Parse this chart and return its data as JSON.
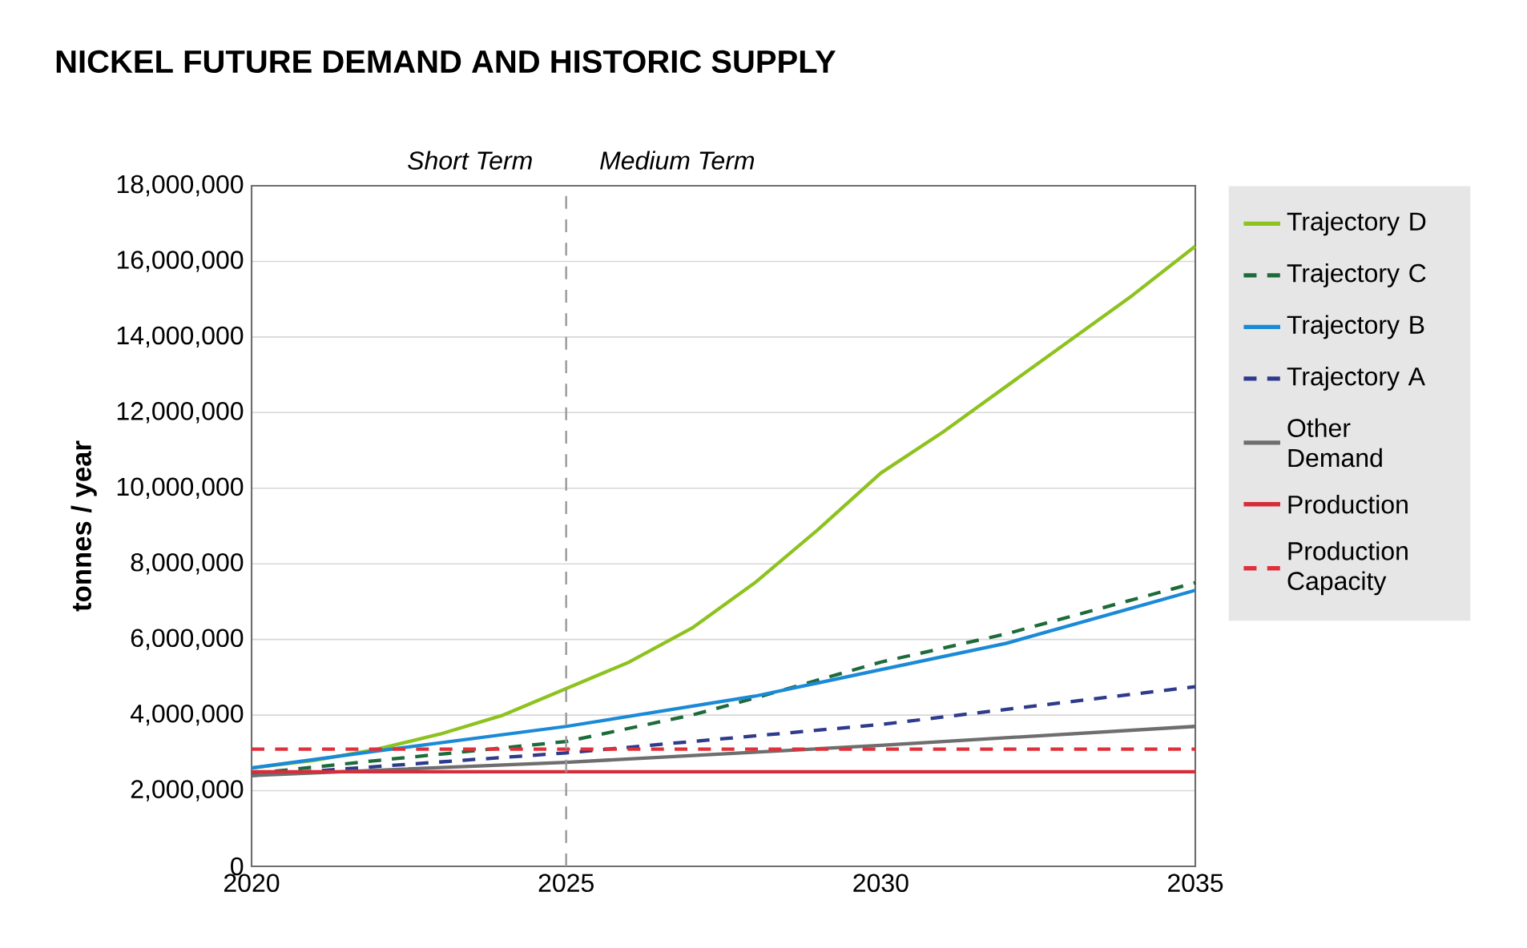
{
  "chart_data": {
    "type": "line",
    "title": "NICKEL FUTURE DEMAND AND HISTORIC SUPPLY",
    "ylabel": "tonnes / year",
    "annotations": [
      "Short Term",
      "Medium Term"
    ],
    "xlim": [
      2020,
      2035
    ],
    "xticks": [
      2020,
      2025,
      2030,
      2035
    ],
    "ylim": [
      0,
      18000000
    ],
    "yticks": [
      {
        "value": 0,
        "label": "0"
      },
      {
        "value": 2000000,
        "label": "2,000,000"
      },
      {
        "value": 4000000,
        "label": "4,000,000"
      },
      {
        "value": 6000000,
        "label": "6,000,000"
      },
      {
        "value": 8000000,
        "label": "8,000,000"
      },
      {
        "value": 10000000,
        "label": "10,000,000"
      },
      {
        "value": 12000000,
        "label": "12,000,000"
      },
      {
        "value": 14000000,
        "label": "14,000,000"
      },
      {
        "value": 16000000,
        "label": "16,000,000"
      },
      {
        "value": 18000000,
        "label": "18,000,000"
      }
    ],
    "grid": "y",
    "legend": "right",
    "marker": "none",
    "ref_lines": [
      {
        "axis": "x",
        "value": 2025,
        "color": "#999999",
        "line_style": "dashed"
      }
    ],
    "series": [
      {
        "name": "Trajectory D",
        "color": "#8dc21f",
        "line_style": "solid",
        "x": [
          2020,
          2021,
          2022,
          2023,
          2024,
          2025,
          2026,
          2027,
          2028,
          2029,
          2030,
          2031,
          2032,
          2033,
          2034,
          2035
        ],
        "values": [
          2600000,
          2800000,
          3100000,
          3500000,
          4000000,
          4700000,
          5400000,
          6300000,
          7500000,
          8900000,
          10400000,
          11500000,
          12700000,
          13900000,
          15100000,
          16400000
        ]
      },
      {
        "name": "Trajectory C",
        "color": "#1e6b3a",
        "line_style": "dashed",
        "x": [
          2020,
          2022,
          2025,
          2027,
          2028,
          2030,
          2032,
          2035
        ],
        "values": [
          2450000,
          2800000,
          3300000,
          4000000,
          4450000,
          5400000,
          6150000,
          7500000
        ]
      },
      {
        "name": "Trajectory B",
        "color": "#1b8ad6",
        "line_style": "solid",
        "x": [
          2020,
          2022,
          2025,
          2028,
          2030,
          2032,
          2035
        ],
        "values": [
          2600000,
          3050000,
          3700000,
          4500000,
          5200000,
          5900000,
          7300000
        ]
      },
      {
        "name": "Trajectory A",
        "color": "#2e3a8c",
        "line_style": "dashed",
        "x": [
          2020,
          2025,
          2030,
          2035
        ],
        "values": [
          2400000,
          3000000,
          3750000,
          4750000
        ]
      },
      {
        "name": "Other Demand",
        "color": "#6e6e6e",
        "line_style": "solid",
        "x": [
          2020,
          2025,
          2030,
          2035
        ],
        "values": [
          2400000,
          2750000,
          3200000,
          3700000
        ]
      },
      {
        "name": "Production",
        "color": "#d62d3a",
        "line_style": "solid",
        "x": [
          2020,
          2035
        ],
        "values": [
          2500000,
          2500000
        ]
      },
      {
        "name": "Production Capacity",
        "color": "#e0303a",
        "line_style": "dashed",
        "x": [
          2020,
          2035
        ],
        "values": [
          3100000,
          3100000
        ]
      }
    ]
  }
}
